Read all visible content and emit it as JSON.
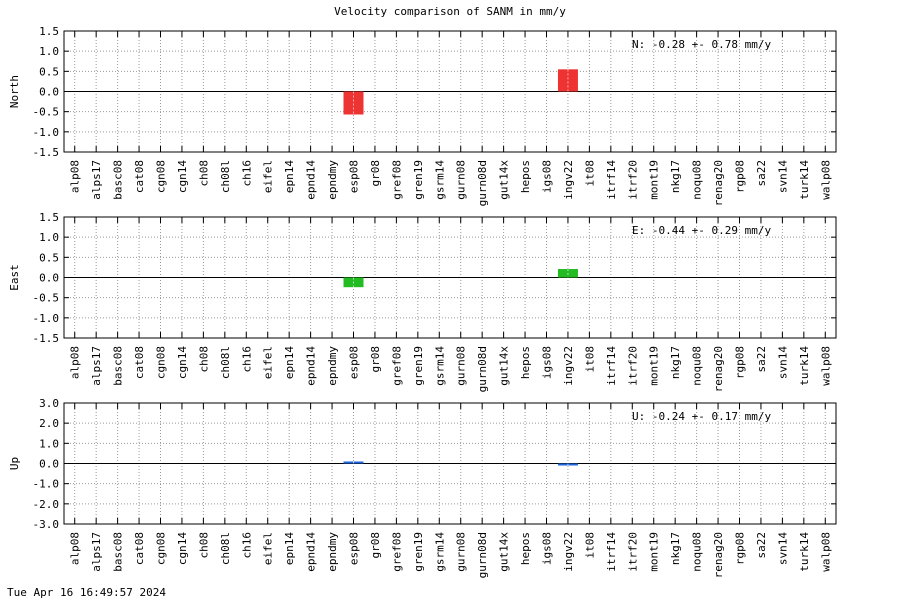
{
  "title": "Velocity comparison of SANM in mm/y",
  "timestamp": "Tue Apr 16 16:49:57 2024",
  "colors": {
    "north": "#ee3333",
    "east": "#22bb22",
    "up": "#2266dd",
    "grid": "#999999"
  },
  "chart_data": [
    {
      "type": "bar",
      "ylabel": "North",
      "categories": [
        "alp08",
        "alps17",
        "basc08",
        "cat08",
        "cgn08",
        "cgn14",
        "ch08",
        "ch08l",
        "ch16",
        "eifel",
        "epn14",
        "epnd14",
        "epndmy",
        "esp08",
        "gr08",
        "gref08",
        "gren19",
        "gsrm14",
        "gurn08",
        "gurn08d",
        "gut14x",
        "hepos",
        "igs08",
        "ingv22",
        "it08",
        "itrf14",
        "itrf20",
        "mont19",
        "nkg17",
        "noqu08",
        "renag20",
        "rgp08",
        "sa22",
        "svn14",
        "turk14",
        "walp08"
      ],
      "values": [
        null,
        null,
        null,
        null,
        null,
        null,
        null,
        null,
        null,
        null,
        null,
        null,
        null,
        -0.57,
        null,
        null,
        null,
        null,
        null,
        null,
        null,
        null,
        null,
        0.55,
        null,
        null,
        null,
        null,
        null,
        null,
        null,
        null,
        null,
        null,
        null,
        null
      ],
      "ylim": [
        -1.5,
        1.5
      ],
      "yticks": [
        "1.5",
        "1.0",
        "0.5",
        "0.0",
        "-0.5",
        "-1.0",
        "-1.5"
      ],
      "annotation": "N:  -0.28 +-  0.78 mm/y",
      "grid": true
    },
    {
      "type": "bar",
      "ylabel": "East",
      "categories": [
        "alp08",
        "alps17",
        "basc08",
        "cat08",
        "cgn08",
        "cgn14",
        "ch08",
        "ch08l",
        "ch16",
        "eifel",
        "epn14",
        "epnd14",
        "epndmy",
        "esp08",
        "gr08",
        "gref08",
        "gren19",
        "gsrm14",
        "gurn08",
        "gurn08d",
        "gut14x",
        "hepos",
        "igs08",
        "ingv22",
        "it08",
        "itrf14",
        "itrf20",
        "mont19",
        "nkg17",
        "noqu08",
        "renag20",
        "rgp08",
        "sa22",
        "svn14",
        "turk14",
        "walp08"
      ],
      "values": [
        null,
        null,
        null,
        null,
        null,
        null,
        null,
        null,
        null,
        null,
        null,
        null,
        null,
        -0.24,
        null,
        null,
        null,
        null,
        null,
        null,
        null,
        null,
        null,
        0.21,
        null,
        null,
        null,
        null,
        null,
        null,
        null,
        null,
        null,
        null,
        null,
        null
      ],
      "ylim": [
        -1.5,
        1.5
      ],
      "yticks": [
        "1.5",
        "1.0",
        "0.5",
        "0.0",
        "-0.5",
        "-1.0",
        "-1.5"
      ],
      "annotation": "E:  -0.44 +-  0.29 mm/y",
      "grid": true
    },
    {
      "type": "bar",
      "ylabel": "Up",
      "categories": [
        "alp08",
        "alps17",
        "basc08",
        "cat08",
        "cgn08",
        "cgn14",
        "ch08",
        "ch08l",
        "ch16",
        "eifel",
        "epn14",
        "epnd14",
        "epndmy",
        "esp08",
        "gr08",
        "gref08",
        "gren19",
        "gsrm14",
        "gurn08",
        "gurn08d",
        "gut14x",
        "hepos",
        "igs08",
        "ingv22",
        "it08",
        "itrf14",
        "itrf20",
        "mont19",
        "nkg17",
        "noqu08",
        "renag20",
        "rgp08",
        "sa22",
        "svn14",
        "turk14",
        "walp08"
      ],
      "values": [
        null,
        null,
        null,
        null,
        null,
        null,
        null,
        null,
        null,
        null,
        null,
        null,
        null,
        0.1,
        null,
        null,
        null,
        null,
        null,
        null,
        null,
        null,
        null,
        -0.1,
        null,
        null,
        null,
        null,
        null,
        null,
        null,
        null,
        null,
        null,
        null,
        null
      ],
      "ylim": [
        -3.0,
        3.0
      ],
      "yticks": [
        "3.0",
        "2.0",
        "1.0",
        "0.0",
        "-1.0",
        "-2.0",
        "-3.0"
      ],
      "annotation": "U:  -0.24 +-  0.17 mm/y",
      "grid": true
    }
  ]
}
